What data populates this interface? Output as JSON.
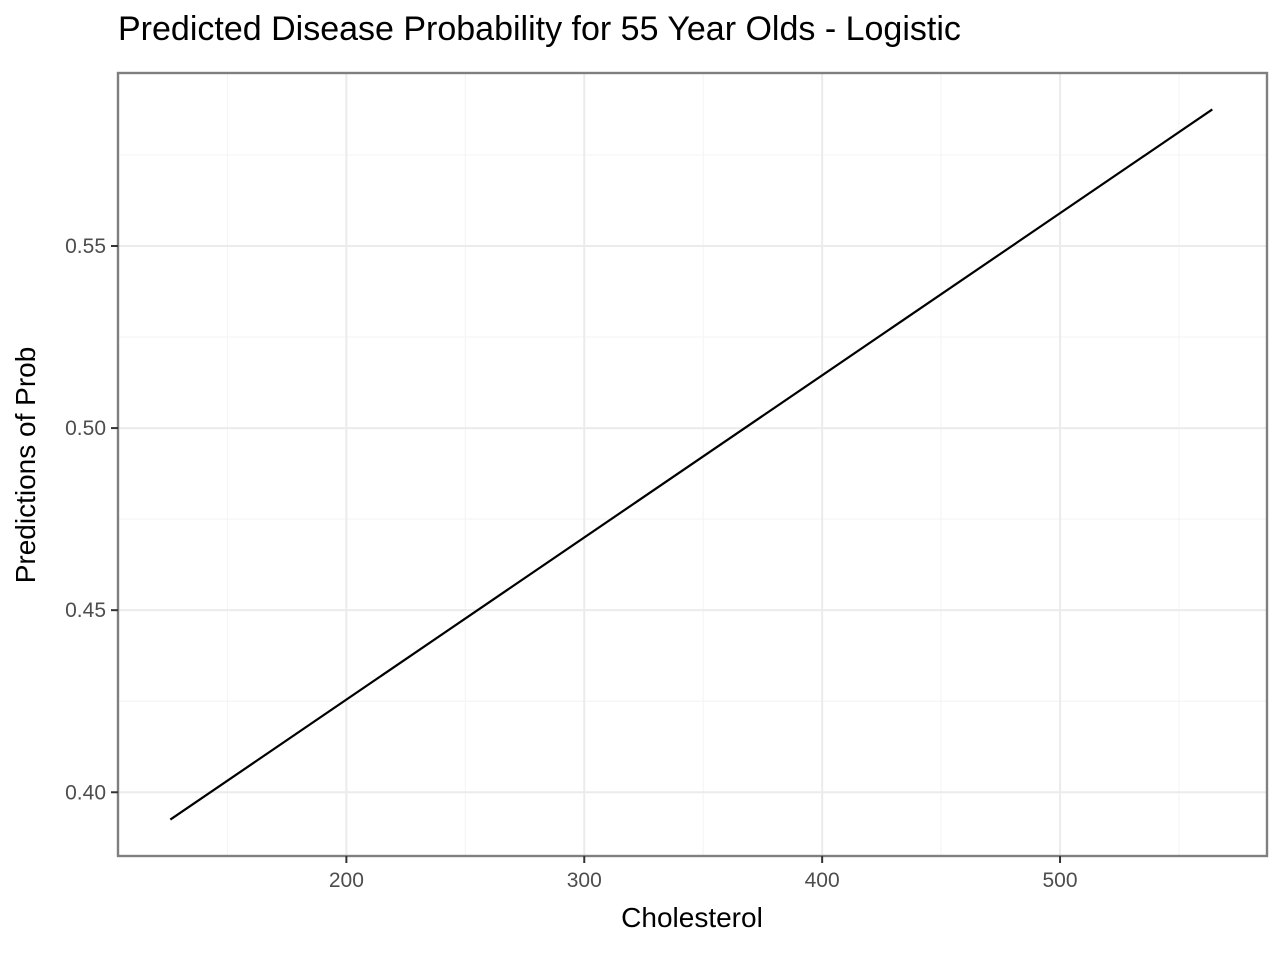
{
  "chart_data": {
    "type": "line",
    "title": "Predicted Disease Probability for 55 Year Olds - Logistic",
    "xlabel": "Cholesterol",
    "ylabel": "Predictions of Prob",
    "xlim": [
      104,
      587
    ],
    "ylim": [
      0.3825,
      0.5975
    ],
    "x_ticks": [
      200,
      300,
      400,
      500
    ],
    "x_tick_labels": [
      "200",
      "300",
      "400",
      "500"
    ],
    "x_minor_ticks": [
      150,
      250,
      350,
      450,
      550
    ],
    "y_ticks": [
      0.4,
      0.45,
      0.5,
      0.55
    ],
    "y_tick_labels": [
      "0.40",
      "0.45",
      "0.50",
      "0.55"
    ],
    "y_minor_ticks": [
      0.425,
      0.475,
      0.525,
      0.575
    ],
    "grid": true,
    "legend": "none",
    "series": [
      {
        "color": "#000000",
        "x": [
          126,
          564
        ],
        "y": [
          0.3925,
          0.5875
        ]
      }
    ]
  }
}
